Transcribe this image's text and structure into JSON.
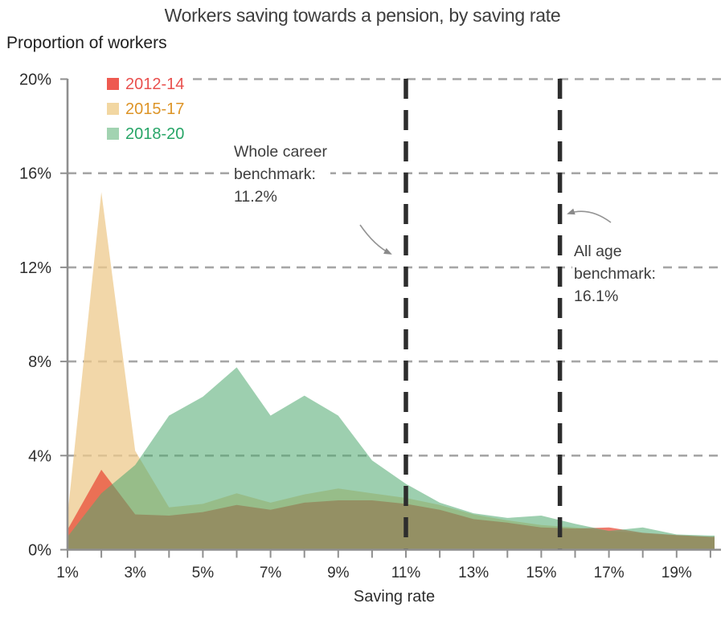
{
  "title": "Workers saving towards a pension, by saving rate",
  "legend": [
    {
      "label": "2012-14",
      "swatch_color": "#ee5a50",
      "text_color": "#e9504e"
    },
    {
      "label": "2015-17",
      "swatch_color": "#f2d7a2",
      "text_color": "#dd9427"
    },
    {
      "label": "2018-20",
      "swatch_color": "#a2d3b1",
      "text_color": "#27a567"
    }
  ],
  "chart_data": {
    "type": "area",
    "title": "Workers saving towards a pension, by saving rate",
    "xlabel": "Saving rate",
    "ylabel": "Proportion of workers",
    "x_unit": "%",
    "xlim": [
      1,
      20
    ],
    "ylim": [
      0,
      20
    ],
    "grid": "horizontal-dashed",
    "legend_position": "top-left",
    "x": [
      1,
      2,
      3,
      4,
      5,
      6,
      7,
      8,
      9,
      10,
      11,
      12,
      13,
      14,
      15,
      16,
      17,
      18,
      19,
      20
    ],
    "series": [
      {
        "name": "2012-14",
        "color": "#e84834",
        "fill_opacity": 0.72,
        "values": [
          0.85,
          3.4,
          1.5,
          1.45,
          1.6,
          1.9,
          1.7,
          2.0,
          2.1,
          2.1,
          1.95,
          1.7,
          1.3,
          1.15,
          0.95,
          0.9,
          0.95,
          0.72,
          0.62,
          0.55
        ]
      },
      {
        "name": "2015-17",
        "color": "#eeca8c",
        "fill_opacity": 0.75,
        "values": [
          1.45,
          15.2,
          4.2,
          1.8,
          1.95,
          2.4,
          2.0,
          2.35,
          2.6,
          2.4,
          2.2,
          1.9,
          1.5,
          1.25,
          1.05,
          0.95,
          0.8,
          0.7,
          0.6,
          0.55
        ]
      },
      {
        "name": "2018-20",
        "color": "#50aa70",
        "fill_opacity": 0.56,
        "values": [
          0.55,
          2.4,
          3.6,
          5.7,
          6.5,
          7.75,
          5.7,
          6.55,
          5.7,
          3.8,
          2.8,
          2.0,
          1.55,
          1.35,
          1.45,
          1.1,
          0.8,
          0.95,
          0.65,
          0.6
        ]
      }
    ],
    "draw_order": [
      1,
      0,
      2
    ],
    "y_ticks": [
      {
        "value": 0,
        "label": "0%"
      },
      {
        "value": 4,
        "label": "4%"
      },
      {
        "value": 8,
        "label": "8%"
      },
      {
        "value": 12,
        "label": "12%"
      },
      {
        "value": 16,
        "label": "16%"
      },
      {
        "value": 20,
        "label": "20%"
      }
    ],
    "x_tick_labels": [
      {
        "value": 1,
        "label": "1%"
      },
      {
        "value": 3,
        "label": "3%"
      },
      {
        "value": 5,
        "label": "5%"
      },
      {
        "value": 7,
        "label": "7%"
      },
      {
        "value": 9,
        "label": "9%"
      },
      {
        "value": 11,
        "label": "11%"
      },
      {
        "value": 13,
        "label": "13%"
      },
      {
        "value": 15,
        "label": "15%"
      },
      {
        "value": 17,
        "label": "17%"
      },
      {
        "value": 19,
        "label": "19%"
      }
    ],
    "benchmarks": [
      {
        "name": "whole-career",
        "lines": [
          "Whole career",
          "benchmark:",
          "11.2%"
        ],
        "value": 11.2,
        "line_x": 11.0
      },
      {
        "name": "all-age",
        "lines": [
          "All age",
          "benchmark:",
          "16.1%"
        ],
        "value": 16.1,
        "line_x": 15.55
      }
    ]
  }
}
